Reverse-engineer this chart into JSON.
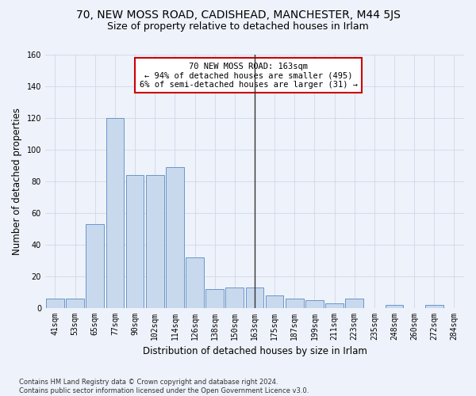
{
  "title": "70, NEW MOSS ROAD, CADISHEAD, MANCHESTER, M44 5JS",
  "subtitle": "Size of property relative to detached houses in Irlam",
  "xlabel": "Distribution of detached houses by size in Irlam",
  "ylabel": "Number of detached properties",
  "footer": "Contains HM Land Registry data © Crown copyright and database right 2024.\nContains public sector information licensed under the Open Government Licence v3.0.",
  "bin_labels": [
    "41sqm",
    "53sqm",
    "65sqm",
    "77sqm",
    "90sqm",
    "102sqm",
    "114sqm",
    "126sqm",
    "138sqm",
    "150sqm",
    "163sqm",
    "175sqm",
    "187sqm",
    "199sqm",
    "211sqm",
    "223sqm",
    "235sqm",
    "248sqm",
    "260sqm",
    "272sqm",
    "284sqm"
  ],
  "bar_values": [
    6,
    6,
    53,
    120,
    84,
    84,
    89,
    32,
    12,
    13,
    13,
    8,
    6,
    5,
    3,
    6,
    0,
    2,
    0,
    2,
    0
  ],
  "bar_color": "#c9d9ed",
  "bar_edge_color": "#6a96c8",
  "vline_color": "#333333",
  "ylim": [
    0,
    160
  ],
  "yticks": [
    0,
    20,
    40,
    60,
    80,
    100,
    120,
    140,
    160
  ],
  "grid_color": "#d0d8e8",
  "bg_color": "#eef2fa",
  "annotation_text": "70 NEW MOSS ROAD: 163sqm\n← 94% of detached houses are smaller (495)\n6% of semi-detached houses are larger (31) →",
  "annotation_box_color": "#ffffff",
  "annotation_box_edge_color": "#cc0000",
  "title_fontsize": 10,
  "subtitle_fontsize": 9,
  "axis_label_fontsize": 8.5,
  "tick_fontsize": 7,
  "annotation_fontsize": 7.5,
  "footer_fontsize": 6
}
